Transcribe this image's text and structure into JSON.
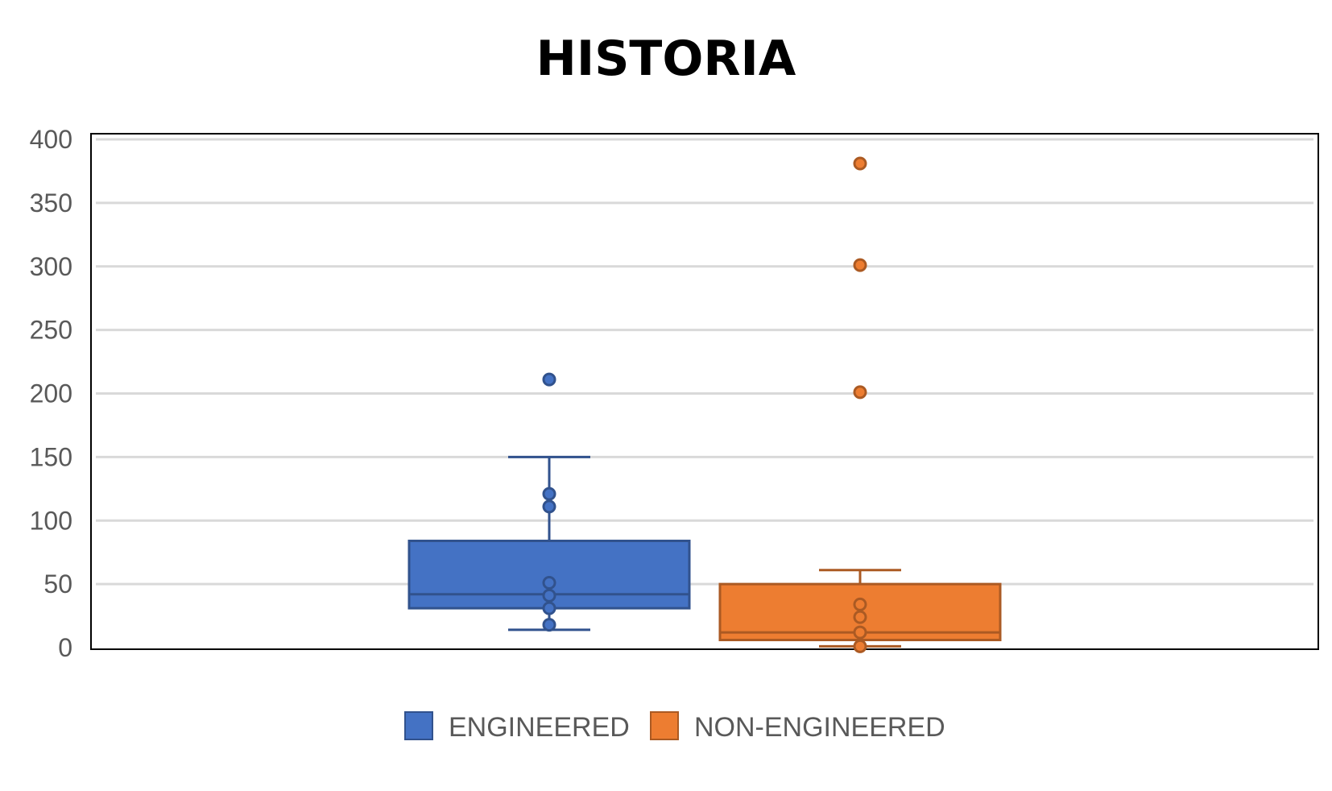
{
  "chart_data": {
    "type": "box",
    "title": "HISTORIA",
    "xlabel": "",
    "ylabel": "",
    "ylim": [
      0,
      400
    ],
    "yticks": [
      0,
      50,
      100,
      150,
      200,
      250,
      300,
      350,
      400
    ],
    "grid": true,
    "legend_position": "bottom",
    "series": [
      {
        "name": "ENGINEERED",
        "color": "#4472C4",
        "whisker_low": 14,
        "q1": 31,
        "median": 42,
        "q3": 84,
        "whisker_high": 150,
        "points": [
          18,
          31,
          41,
          51,
          111,
          121
        ],
        "outliers": [
          211
        ]
      },
      {
        "name": "NON-ENGINEERED",
        "color": "#ED7D31",
        "whisker_low": 1,
        "q1": 6,
        "median": 12,
        "q3": 50,
        "whisker_high": 61,
        "points": [
          1,
          12,
          24,
          34
        ],
        "outliers": [
          201,
          301,
          381
        ]
      }
    ]
  }
}
